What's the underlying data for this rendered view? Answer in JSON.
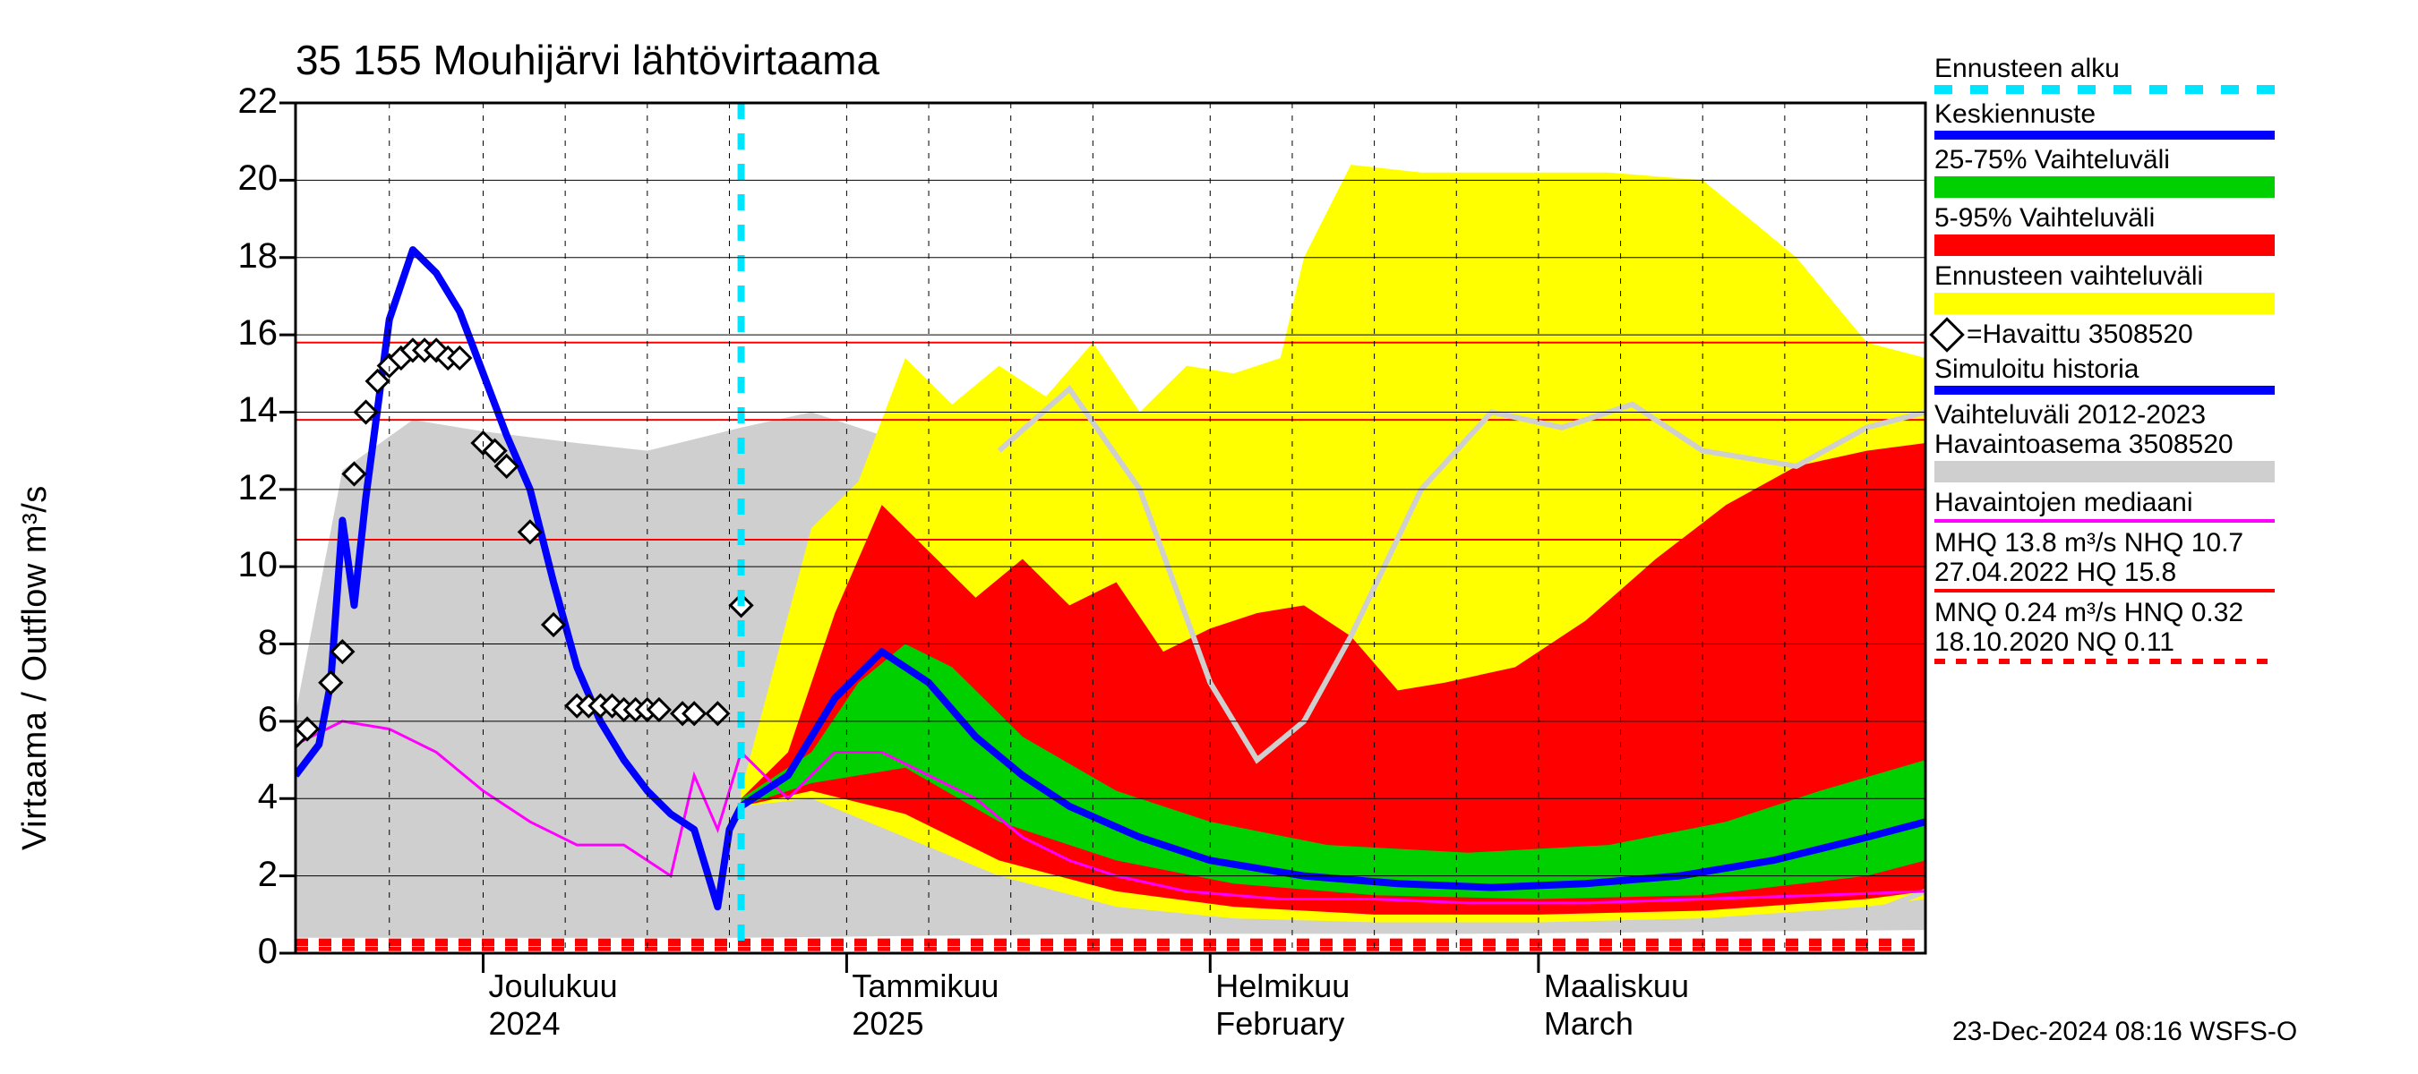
{
  "title": "35 155 Mouhijärvi lähtövirtaama",
  "y_axis_label": "Virtaama / Outflow    m³/s",
  "footer_stamp": "23-Dec-2024 08:16 WSFS-O",
  "plot": {
    "background_color": "#ffffff",
    "grid_color": "#000000",
    "tick_font_size": 40,
    "title_font_size": 46,
    "xlim": [
      0,
      139
    ],
    "ylim": [
      0,
      22
    ],
    "ytick_step": 2,
    "y_ticks": [
      0,
      2,
      4,
      6,
      8,
      10,
      12,
      14,
      16,
      18,
      20,
      22
    ],
    "x_month_ticks": [
      {
        "pos": 16,
        "label_top": "Joulukuu",
        "label_bot": "2024"
      },
      {
        "pos": 47,
        "label_top": "Tammikuu",
        "label_bot": "2025"
      },
      {
        "pos": 78,
        "label_top": "Helmikuu",
        "label_bot": "February"
      },
      {
        "pos": 106,
        "label_top": "Maaliskuu",
        "label_bot": "March"
      }
    ],
    "x_minor_week_positions": [
      0,
      8,
      16,
      23,
      30,
      37,
      47,
      54,
      61,
      68,
      78,
      85,
      92,
      99,
      106,
      113,
      120,
      127,
      134,
      139
    ],
    "forecast_start_x": 38,
    "ref_lines": {
      "MHQ": 13.8,
      "NHQ": 10.7,
      "HQ": 15.8,
      "MNQ": 0.24,
      "NQ": 0.11,
      "HNQ": 0.32
    },
    "colors": {
      "forecast_line": "#0000ff",
      "history_line": "#0000ff",
      "band_25_75": "#00d000",
      "band_5_95": "#ff0000",
      "band_full": "#ffff00",
      "hist_band": "#cfcfcf",
      "median_hist": "#ff00ff",
      "grey_hist_env": "#cfcfcf",
      "forecast_start": "#00e5ff",
      "ref_line": "#ff0000",
      "observed_marker_stroke": "#000000"
    },
    "line_widths": {
      "forecast": 8,
      "median": 3,
      "ref": 2,
      "forecast_start": 8
    },
    "grey_band_upper": [
      [
        0,
        6.2
      ],
      [
        4,
        12.5
      ],
      [
        10,
        13.8
      ],
      [
        16,
        13.5
      ],
      [
        24,
        13.2
      ],
      [
        30,
        13.0
      ],
      [
        38,
        13.6
      ],
      [
        44,
        14.0
      ],
      [
        50,
        13.4
      ],
      [
        56,
        12.5
      ],
      [
        62,
        13.0
      ],
      [
        68,
        14.6
      ],
      [
        74,
        12.2
      ],
      [
        80,
        11.0
      ],
      [
        86,
        11.7
      ],
      [
        92,
        14.0
      ],
      [
        100,
        14.0
      ],
      [
        106,
        13.5
      ],
      [
        112,
        14.2
      ],
      [
        120,
        13.0
      ],
      [
        128,
        12.6
      ],
      [
        134,
        13.8
      ],
      [
        139,
        14.0
      ]
    ],
    "grey_band_lower": [
      [
        0,
        0.4
      ],
      [
        16,
        0.4
      ],
      [
        38,
        0.4
      ],
      [
        70,
        0.5
      ],
      [
        100,
        0.5
      ],
      [
        139,
        0.6
      ]
    ],
    "yellow_upper": [
      [
        38,
        4.2
      ],
      [
        44,
        11.0
      ],
      [
        48,
        12.2
      ],
      [
        52,
        15.4
      ],
      [
        56,
        14.2
      ],
      [
        60,
        15.2
      ],
      [
        64,
        14.4
      ],
      [
        68,
        15.8
      ],
      [
        72,
        14.0
      ],
      [
        76,
        15.2
      ],
      [
        80,
        15.0
      ],
      [
        84,
        15.4
      ],
      [
        86,
        18.0
      ],
      [
        90,
        20.4
      ],
      [
        96,
        20.2
      ],
      [
        106,
        20.2
      ],
      [
        112,
        20.2
      ],
      [
        120,
        20.0
      ],
      [
        128,
        18.0
      ],
      [
        134,
        15.8
      ],
      [
        139,
        15.4
      ]
    ],
    "yellow_lower": [
      [
        38,
        3.8
      ],
      [
        44,
        4.0
      ],
      [
        52,
        3.0
      ],
      [
        60,
        2.0
      ],
      [
        70,
        1.2
      ],
      [
        80,
        0.9
      ],
      [
        92,
        0.8
      ],
      [
        106,
        0.8
      ],
      [
        120,
        0.9
      ],
      [
        134,
        1.2
      ],
      [
        139,
        1.4
      ]
    ],
    "red_upper": [
      [
        38,
        4.0
      ],
      [
        42,
        5.2
      ],
      [
        46,
        8.8
      ],
      [
        50,
        11.6
      ],
      [
        54,
        10.4
      ],
      [
        58,
        9.2
      ],
      [
        62,
        10.2
      ],
      [
        66,
        9.0
      ],
      [
        70,
        9.6
      ],
      [
        74,
        7.8
      ],
      [
        78,
        8.4
      ],
      [
        82,
        8.8
      ],
      [
        86,
        9.0
      ],
      [
        90,
        8.2
      ],
      [
        94,
        6.8
      ],
      [
        98,
        7.0
      ],
      [
        104,
        7.4
      ],
      [
        110,
        8.6
      ],
      [
        116,
        10.2
      ],
      [
        122,
        11.6
      ],
      [
        128,
        12.6
      ],
      [
        134,
        13.0
      ],
      [
        139,
        13.2
      ]
    ],
    "red_lower": [
      [
        38,
        3.8
      ],
      [
        44,
        4.2
      ],
      [
        52,
        3.6
      ],
      [
        60,
        2.4
      ],
      [
        70,
        1.6
      ],
      [
        80,
        1.2
      ],
      [
        92,
        1.0
      ],
      [
        106,
        1.0
      ],
      [
        120,
        1.1
      ],
      [
        134,
        1.4
      ],
      [
        139,
        1.6
      ]
    ],
    "green_upper": [
      [
        38,
        4.0
      ],
      [
        44,
        5.2
      ],
      [
        48,
        7.0
      ],
      [
        52,
        8.0
      ],
      [
        56,
        7.4
      ],
      [
        62,
        5.6
      ],
      [
        70,
        4.2
      ],
      [
        78,
        3.4
      ],
      [
        88,
        2.8
      ],
      [
        100,
        2.6
      ],
      [
        112,
        2.8
      ],
      [
        122,
        3.4
      ],
      [
        130,
        4.2
      ],
      [
        139,
        5.0
      ]
    ],
    "green_lower": [
      [
        38,
        3.8
      ],
      [
        44,
        4.4
      ],
      [
        52,
        4.8
      ],
      [
        60,
        3.4
      ],
      [
        70,
        2.4
      ],
      [
        80,
        1.8
      ],
      [
        92,
        1.5
      ],
      [
        106,
        1.4
      ],
      [
        120,
        1.5
      ],
      [
        134,
        2.0
      ],
      [
        139,
        2.4
      ]
    ],
    "blue_line": [
      [
        0,
        4.6
      ],
      [
        2,
        5.4
      ],
      [
        3,
        7.0
      ],
      [
        4,
        11.2
      ],
      [
        5,
        9.0
      ],
      [
        6,
        11.8
      ],
      [
        8,
        16.4
      ],
      [
        10,
        18.2
      ],
      [
        12,
        17.6
      ],
      [
        14,
        16.6
      ],
      [
        16,
        15.0
      ],
      [
        18,
        13.4
      ],
      [
        20,
        12.0
      ],
      [
        22,
        9.6
      ],
      [
        24,
        7.4
      ],
      [
        26,
        6.0
      ],
      [
        28,
        5.0
      ],
      [
        30,
        4.2
      ],
      [
        32,
        3.6
      ],
      [
        34,
        3.2
      ],
      [
        36,
        1.2
      ],
      [
        37,
        3.2
      ],
      [
        38,
        3.8
      ],
      [
        42,
        4.6
      ],
      [
        46,
        6.6
      ],
      [
        50,
        7.8
      ],
      [
        54,
        7.0
      ],
      [
        58,
        5.6
      ],
      [
        62,
        4.6
      ],
      [
        66,
        3.8
      ],
      [
        72,
        3.0
      ],
      [
        78,
        2.4
      ],
      [
        86,
        2.0
      ],
      [
        94,
        1.8
      ],
      [
        102,
        1.7
      ],
      [
        110,
        1.8
      ],
      [
        118,
        2.0
      ],
      [
        126,
        2.4
      ],
      [
        134,
        3.0
      ],
      [
        139,
        3.4
      ]
    ],
    "magenta_line": [
      [
        0,
        5.4
      ],
      [
        4,
        6.0
      ],
      [
        8,
        5.8
      ],
      [
        12,
        5.2
      ],
      [
        16,
        4.2
      ],
      [
        20,
        3.4
      ],
      [
        24,
        2.8
      ],
      [
        28,
        2.8
      ],
      [
        32,
        2.0
      ],
      [
        34,
        4.6
      ],
      [
        36,
        3.2
      ],
      [
        38,
        5.2
      ],
      [
        42,
        4.0
      ],
      [
        46,
        5.2
      ],
      [
        50,
        5.2
      ],
      [
        54,
        4.6
      ],
      [
        58,
        4.0
      ],
      [
        62,
        3.0
      ],
      [
        66,
        2.4
      ],
      [
        70,
        2.0
      ],
      [
        76,
        1.6
      ],
      [
        84,
        1.4
      ],
      [
        92,
        1.4
      ],
      [
        100,
        1.3
      ],
      [
        110,
        1.3
      ],
      [
        120,
        1.4
      ],
      [
        130,
        1.5
      ],
      [
        139,
        1.6
      ]
    ],
    "grey_env_line_upper": [
      [
        60,
        13.0
      ],
      [
        66,
        14.6
      ],
      [
        72,
        12.0
      ],
      [
        78,
        7.0
      ],
      [
        82,
        5.0
      ],
      [
        86,
        6.0
      ],
      [
        90,
        8.2
      ],
      [
        96,
        12.0
      ],
      [
        102,
        14.0
      ],
      [
        108,
        13.6
      ],
      [
        114,
        14.2
      ],
      [
        120,
        13.0
      ],
      [
        128,
        12.6
      ],
      [
        134,
        13.6
      ],
      [
        139,
        14.0
      ]
    ],
    "grey_env_line_lower": [
      [
        120,
        0.8
      ],
      [
        128,
        0.8
      ],
      [
        134,
        1.0
      ],
      [
        139,
        1.6
      ]
    ],
    "observed_points": [
      [
        0,
        5.6
      ],
      [
        1,
        5.8
      ],
      [
        3,
        7.0
      ],
      [
        4,
        7.8
      ],
      [
        5,
        12.4
      ],
      [
        6,
        14.0
      ],
      [
        7,
        14.8
      ],
      [
        8,
        15.2
      ],
      [
        9,
        15.4
      ],
      [
        10,
        15.6
      ],
      [
        11,
        15.6
      ],
      [
        12,
        15.6
      ],
      [
        13,
        15.4
      ],
      [
        14,
        15.4
      ],
      [
        16,
        13.2
      ],
      [
        17,
        13.0
      ],
      [
        18,
        12.6
      ],
      [
        20,
        10.9
      ],
      [
        22,
        8.5
      ],
      [
        24,
        6.4
      ],
      [
        25,
        6.4
      ],
      [
        26,
        6.4
      ],
      [
        27,
        6.4
      ],
      [
        28,
        6.3
      ],
      [
        29,
        6.3
      ],
      [
        30,
        6.3
      ],
      [
        31,
        6.3
      ],
      [
        33,
        6.2
      ],
      [
        34,
        6.2
      ],
      [
        36,
        6.2
      ],
      [
        38,
        9.0
      ]
    ]
  },
  "legend": {
    "entries": [
      {
        "key": "forecast_start",
        "label": "Ennusteen alku",
        "type": "line-dashed-cyan"
      },
      {
        "key": "mean_forecast",
        "label": "Keskiennuste",
        "type": "line-blue"
      },
      {
        "key": "band_2575",
        "label": "25-75% Vaihteluväli",
        "type": "fill-green"
      },
      {
        "key": "band_595",
        "label": "5-95% Vaihteluväli",
        "type": "fill-red"
      },
      {
        "key": "band_full",
        "label": "Ennusteen vaihteluväli",
        "type": "fill-yellow"
      },
      {
        "key": "observed",
        "label": "=Havaittu 3508520",
        "type": "diamond"
      },
      {
        "key": "sim_hist",
        "label": "Simuloitu historia",
        "type": "line-blue"
      },
      {
        "key": "hist_band",
        "label": "Vaihteluväli 2012-2023",
        "label2": " Havaintoasema 3508520",
        "type": "fill-grey"
      },
      {
        "key": "median",
        "label": "Havaintojen mediaani",
        "type": "line-magenta"
      },
      {
        "key": "ref_high",
        "label": "MHQ 13.8 m³/s NHQ 10.7",
        "label2": "27.04.2022 HQ 15.8",
        "type": "line-red"
      },
      {
        "key": "ref_low",
        "label": "MNQ 0.24 m³/s HNQ 0.32",
        "label2": "18.10.2020 NQ 0.11",
        "type": "line-red-dashed"
      }
    ]
  }
}
